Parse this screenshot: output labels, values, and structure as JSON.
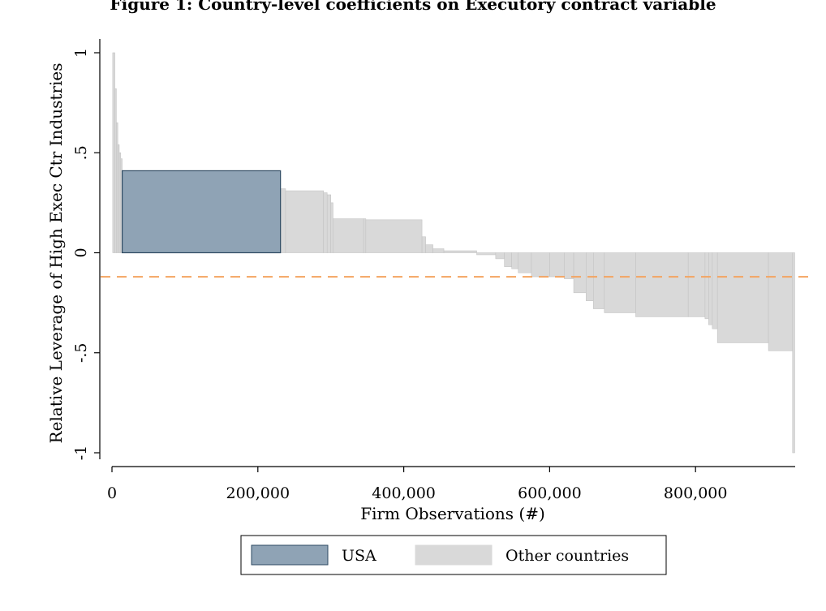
{
  "chart_data": {
    "type": "bar",
    "title": "Figure 1: Country-level coefficients on Executory contract variable",
    "xlabel": "Firm Observations (#)",
    "ylabel": "Relative Leverage of High Exec Ctr Industries",
    "xlim": [
      0,
      940000
    ],
    "ylim": [
      -1,
      1
    ],
    "xticks": [
      0,
      200000,
      400000,
      600000,
      800000
    ],
    "xtick_labels": [
      "0",
      "200,000",
      "400,000",
      "600,000",
      "800,000"
    ],
    "yticks": [
      1,
      0.5,
      0,
      -0.5,
      -1
    ],
    "ytick_labels": [
      "1",
      ".5",
      "0",
      "-.5",
      "-1"
    ],
    "grid": false,
    "legend_position": "bottom",
    "reference_line": {
      "y": -0.12,
      "color": "#f4a460",
      "style": "dashed"
    },
    "colors": {
      "USA": "#8fa3b5",
      "Other countries": "#d9d9d9",
      "USA_edge": "#2e4a62",
      "Other_edge": "#c4c4c4"
    },
    "series": [
      {
        "name": "USA",
        "bars": [
          {
            "x0": 14000,
            "x1": 231000,
            "value": 0.41
          }
        ]
      },
      {
        "name": "Other countries",
        "bars": [
          {
            "x0": 1000,
            "x1": 4000,
            "value": 1.0
          },
          {
            "x0": 4000,
            "x1": 6000,
            "value": 0.82
          },
          {
            "x0": 6000,
            "x1": 8000,
            "value": 0.65
          },
          {
            "x0": 8000,
            "x1": 10000,
            "value": 0.54
          },
          {
            "x0": 10000,
            "x1": 12000,
            "value": 0.5
          },
          {
            "x0": 12000,
            "x1": 14000,
            "value": 0.47
          },
          {
            "x0": 231000,
            "x1": 238000,
            "value": 0.32
          },
          {
            "x0": 238000,
            "x1": 290000,
            "value": 0.31
          },
          {
            "x0": 290000,
            "x1": 295000,
            "value": 0.3
          },
          {
            "x0": 295000,
            "x1": 300000,
            "value": 0.29
          },
          {
            "x0": 300000,
            "x1": 303000,
            "value": 0.25
          },
          {
            "x0": 303000,
            "x1": 345000,
            "value": 0.17
          },
          {
            "x0": 345000,
            "x1": 348000,
            "value": 0.17
          },
          {
            "x0": 348000,
            "x1": 425000,
            "value": 0.165
          },
          {
            "x0": 425000,
            "x1": 430000,
            "value": 0.08
          },
          {
            "x0": 430000,
            "x1": 440000,
            "value": 0.04
          },
          {
            "x0": 440000,
            "x1": 455000,
            "value": 0.02
          },
          {
            "x0": 455000,
            "x1": 500000,
            "value": 0.01
          },
          {
            "x0": 500000,
            "x1": 526000,
            "value": -0.01
          },
          {
            "x0": 526000,
            "x1": 538000,
            "value": -0.03
          },
          {
            "x0": 538000,
            "x1": 548000,
            "value": -0.07
          },
          {
            "x0": 548000,
            "x1": 557000,
            "value": -0.08
          },
          {
            "x0": 557000,
            "x1": 575000,
            "value": -0.1
          },
          {
            "x0": 575000,
            "x1": 600000,
            "value": -0.12
          },
          {
            "x0": 600000,
            "x1": 620000,
            "value": -0.12
          },
          {
            "x0": 620000,
            "x1": 633000,
            "value": -0.13
          },
          {
            "x0": 633000,
            "x1": 650000,
            "value": -0.2
          },
          {
            "x0": 650000,
            "x1": 660000,
            "value": -0.24
          },
          {
            "x0": 660000,
            "x1": 675000,
            "value": -0.28
          },
          {
            "x0": 675000,
            "x1": 718000,
            "value": -0.3
          },
          {
            "x0": 718000,
            "x1": 790000,
            "value": -0.32
          },
          {
            "x0": 790000,
            "x1": 813000,
            "value": -0.32
          },
          {
            "x0": 813000,
            "x1": 818000,
            "value": -0.33
          },
          {
            "x0": 818000,
            "x1": 823000,
            "value": -0.36
          },
          {
            "x0": 823000,
            "x1": 830000,
            "value": -0.38
          },
          {
            "x0": 830000,
            "x1": 900000,
            "value": -0.45
          },
          {
            "x0": 900000,
            "x1": 933000,
            "value": -0.49
          },
          {
            "x0": 933000,
            "x1": 936000,
            "value": -1.0
          }
        ]
      }
    ]
  }
}
